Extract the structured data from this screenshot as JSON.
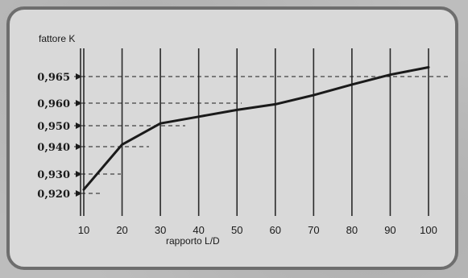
{
  "chart_data": {
    "type": "line",
    "ylabel": "fattore K",
    "xlabel": "rapporto L/D",
    "x_ticks": [
      10,
      20,
      30,
      40,
      50,
      60,
      70,
      80,
      90,
      100
    ],
    "x_tick_labels": [
      "10",
      "20",
      "30",
      "40",
      "50",
      "60",
      "70",
      "80",
      "90",
      "100"
    ],
    "y_ticks": [
      0.92,
      0.93,
      0.94,
      0.95,
      0.96,
      0.965
    ],
    "y_tick_labels": [
      "0,920",
      "0,930",
      "0,940",
      "0,950",
      "0,960",
      "0,965"
    ],
    "xlim": [
      10,
      100
    ],
    "ylim": [
      0.915,
      0.97
    ],
    "grid": "vertical",
    "series": [
      {
        "x": [
          10,
          20,
          30,
          40,
          50,
          60,
          70,
          80,
          90,
          100
        ],
        "y": [
          0.922,
          0.941,
          0.951,
          0.954,
          0.957,
          0.9595,
          0.9615,
          0.9635,
          0.9655,
          0.9675
        ]
      }
    ],
    "guides": [
      {
        "y": 0.965,
        "x": 10
      },
      {
        "y": 0.96,
        "x": 10
      },
      {
        "y": 0.95,
        "x": 10
      },
      {
        "y": 0.94,
        "x": 10
      },
      {
        "y": 0.93,
        "x": 10
      },
      {
        "y": 0.92,
        "x": 10
      }
    ],
    "colors": {
      "line": "#1a1a1a",
      "grid": "#2a2a2a",
      "frame": "#6e6e6e",
      "panel": "#d9d9d9"
    }
  }
}
